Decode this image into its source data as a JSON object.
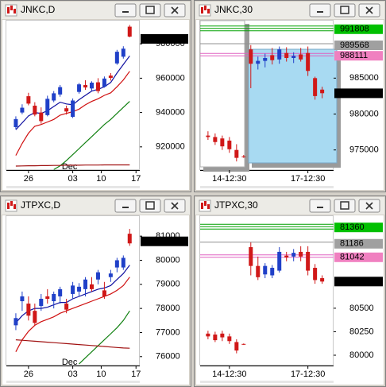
{
  "chart_data": [
    {
      "type": "candlestick",
      "title": "JNKC,D",
      "up_color": "#2040c8",
      "down_color": "#d01818",
      "xlim": [
        -1.5,
        19.6
      ],
      "ylim": [
        906500,
        993500
      ],
      "yticks": [
        920000,
        940000,
        960000,
        980000
      ],
      "xticks": [
        {
          "value": 2,
          "label": "26"
        },
        {
          "value": 9,
          "label": "03"
        },
        {
          "value": 13.5,
          "label": "10"
        },
        {
          "value": 19,
          "label": "17"
        }
      ],
      "month_ticks": [
        {
          "value": 8.5,
          "label": "Dec"
        }
      ],
      "candles": [
        [
          931500,
          937800,
          930200,
          936200
        ],
        [
          940000,
          944800,
          939000,
          942800
        ],
        [
          949500,
          951500,
          944200,
          945200
        ],
        [
          944000,
          946000,
          937800,
          938800
        ],
        [
          940000,
          943000,
          933500,
          935000
        ],
        [
          938500,
          949800,
          937800,
          948000
        ],
        [
          947000,
          952500,
          946000,
          951200
        ],
        [
          950500,
          956000,
          949200,
          954800
        ],
        [
          942500,
          944000,
          938800,
          940600
        ],
        [
          937500,
          948200,
          936800,
          947000
        ],
        [
          952000,
          957200,
          951000,
          956400
        ],
        [
          956000,
          958800,
          953200,
          954600
        ],
        [
          954000,
          958200,
          952800,
          957400
        ],
        [
          957600,
          960000,
          951200,
          952500
        ],
        [
          955000,
          961000,
          954500,
          959800
        ],
        [
          961500,
          963000,
          958600,
          960200
        ],
        [
          968600,
          976500,
          967800,
          975400
        ],
        [
          972500,
          978600,
          971400,
          977200
        ],
        [
          990000,
          991000,
          983800,
          984200
        ]
      ],
      "lines": [
        {
          "color": "#1010a0",
          "values": [
            930000,
            934000,
            938000,
            940000,
            939500,
            941000,
            943500,
            946000,
            945000,
            944500,
            947500,
            950000,
            952500,
            953500,
            955000,
            957500,
            963000,
            968000,
            973000
          ]
        },
        {
          "color": "#d01010",
          "values": [
            915000,
            922000,
            928000,
            932000,
            933000,
            934500,
            936000,
            938500,
            939500,
            940500,
            942000,
            944500,
            946500,
            948000,
            950000,
            951500,
            955000,
            959000,
            964000
          ]
        },
        {
          "color": "#108010",
          "values": [
            null,
            null,
            null,
            null,
            null,
            null,
            906800,
            909000,
            912000,
            915500,
            919000,
            922500,
            926000,
            929500,
            933000,
            936000,
            939500,
            943000,
            946500
          ]
        },
        {
          "color": "#a01010",
          "values": [
            908800,
            908900,
            909000,
            909000,
            909100,
            909100,
            909200,
            909200,
            909300,
            909300,
            909300,
            909400,
            909400,
            909400,
            909500,
            909500,
            909500,
            909500,
            909500
          ]
        }
      ],
      "levels": [
        {
          "value": 982888,
          "label_bg": "#000000",
          "label_color": "#ffffff"
        }
      ]
    },
    {
      "type": "candlestick",
      "title": "JNKC,30",
      "up_color": "#2040c8",
      "down_color": "#d01818",
      "xlim": [
        -1.1,
        17.6
      ],
      "ylim": [
        972200,
        993000
      ],
      "yticks": [
        975000,
        980000,
        985000
      ],
      "xticks": [
        {
          "value": 3,
          "label": "14-12:30"
        },
        {
          "value": 14,
          "label": "17-12:30"
        }
      ],
      "candles": [
        [
          977000,
          977600,
          976400,
          976800
        ],
        [
          976800,
          977300,
          975700,
          976100
        ],
        [
          976600,
          977000,
          975000,
          975500
        ],
        [
          976300,
          976800,
          974600,
          975100
        ],
        [
          975000,
          975800,
          973400,
          973900
        ],
        [
          974100,
          974300,
          973900,
          974000
        ],
        [
          989000,
          989600,
          983600,
          987000
        ],
        [
          987000,
          988000,
          986200,
          987400
        ],
        [
          987400,
          988400,
          986500,
          987800
        ],
        [
          988200,
          989200,
          986900,
          987500
        ],
        [
          987600,
          989400,
          987000,
          989000
        ],
        [
          988500,
          989300,
          987300,
          987800
        ],
        [
          987800,
          988600,
          987100,
          988100
        ],
        [
          988300,
          989200,
          987300,
          987600
        ],
        [
          988500,
          989400,
          985300,
          986000
        ],
        [
          985000,
          985200,
          982000,
          982500
        ],
        [
          983400,
          983800,
          982200,
          982900
        ]
      ],
      "levels": [
        {
          "value": 991808,
          "color": "#00a000",
          "lines": 3,
          "label_bg": "#00c000",
          "label_color": "#000000"
        },
        {
          "value": 989568,
          "color": "#909090",
          "lines": 1,
          "label_bg": "#a0a0a0",
          "label_color": "#000000"
        },
        {
          "value": 988111,
          "color": "#e060c0",
          "lines": 2,
          "label_bg": "#f080c0",
          "label_color": "#000000"
        },
        {
          "value": 982888,
          "label_bg": "#000000",
          "label_color": "#ffffff"
        }
      ]
    },
    {
      "type": "candlestick",
      "title": "JTPXC,D",
      "up_color": "#2040c8",
      "down_color": "#d01818",
      "xlim": [
        -1.5,
        19.6
      ],
      "ylim": [
        75630,
        81830
      ],
      "yticks": [
        76000,
        77000,
        78000,
        79000,
        80000,
        81000
      ],
      "xticks": [
        {
          "value": 2,
          "label": "26"
        },
        {
          "value": 9,
          "label": "03"
        },
        {
          "value": 13.5,
          "label": "10"
        },
        {
          "value": 19,
          "label": "17"
        }
      ],
      "month_ticks": [
        {
          "value": 8.5,
          "label": "Dec"
        }
      ],
      "candles": [
        [
          77300,
          77800,
          77100,
          77600
        ],
        [
          78300,
          78700,
          77900,
          78500
        ],
        [
          78200,
          78500,
          77500,
          77700
        ],
        [
          77900,
          78200,
          77300,
          77400
        ],
        [
          78100,
          78600,
          77900,
          78400
        ],
        [
          78500,
          78800,
          78200,
          78400
        ],
        [
          78300,
          78700,
          78000,
          78600
        ],
        [
          78500,
          78900,
          78200,
          78800
        ],
        [
          78200,
          78400,
          77800,
          77950
        ],
        [
          78600,
          79100,
          78400,
          78950
        ],
        [
          78700,
          79050,
          78500,
          78900
        ],
        [
          78800,
          79300,
          78500,
          79200
        ],
        [
          79000,
          79300,
          78700,
          78800
        ],
        [
          79200,
          79600,
          79000,
          79500
        ],
        [
          78750,
          79100,
          78400,
          78500
        ],
        [
          79300,
          79600,
          79100,
          79450
        ],
        [
          79700,
          80100,
          79500,
          80000
        ],
        [
          79700,
          80200,
          79600,
          80100
        ],
        [
          81100,
          81300,
          80600,
          80700
        ]
      ],
      "lines": [
        {
          "color": "#1010a0",
          "values": [
            77400,
            77700,
            77900,
            78000,
            78000,
            78050,
            78150,
            78250,
            78250,
            78400,
            78500,
            78600,
            78700,
            78800,
            78850,
            78950,
            79200,
            79450,
            79800
          ]
        },
        {
          "color": "#d01010",
          "values": [
            76200,
            76700,
            77050,
            77300,
            77450,
            77550,
            77650,
            77800,
            77900,
            78000,
            78100,
            78200,
            78300,
            78400,
            78500,
            78600,
            78750,
            78950,
            79300
          ]
        },
        {
          "color": "#108010",
          "values": [
            null,
            null,
            null,
            null,
            null,
            null,
            null,
            null,
            null,
            null,
            75700,
            75950,
            76200,
            76450,
            76700,
            76950,
            77200,
            77500,
            77900
          ]
        },
        {
          "color": "#a01010",
          "values": [
            76700,
            76680,
            76660,
            76640,
            76620,
            76600,
            76580,
            76560,
            76540,
            76520,
            76500,
            76480,
            76460,
            76440,
            76420,
            76400,
            76380,
            76360,
            76350
          ]
        }
      ],
      "levels": [
        {
          "value": 80784,
          "label_bg": "#000000",
          "label_color": "#ffffff"
        }
      ]
    },
    {
      "type": "candlestick",
      "title": "JTPXC,30",
      "up_color": "#2040c8",
      "down_color": "#d01818",
      "xlim": [
        -1.1,
        17.6
      ],
      "ylim": [
        79890,
        81480
      ],
      "yticks": [
        80000,
        80250,
        80500
      ],
      "xticks": [
        {
          "value": 3,
          "label": "14-12:30"
        },
        {
          "value": 14,
          "label": "17-12:30"
        }
      ],
      "candles": [
        [
          80230,
          80260,
          80170,
          80200
        ],
        [
          80220,
          80250,
          80140,
          80160
        ],
        [
          80230,
          80260,
          80150,
          80190
        ],
        [
          80200,
          80230,
          80120,
          80150
        ],
        [
          80140,
          80170,
          80020,
          80050
        ],
        [
          80120,
          80125,
          80110,
          80115
        ],
        [
          81150,
          81200,
          80850,
          80950
        ],
        [
          80950,
          81050,
          80800,
          80830
        ],
        [
          80860,
          80980,
          80820,
          80950
        ],
        [
          80850,
          80960,
          80820,
          80930
        ],
        [
          80900,
          81150,
          80880,
          81100
        ],
        [
          81060,
          81100,
          81000,
          81040
        ],
        [
          81050,
          81130,
          81000,
          81090
        ],
        [
          81100,
          81160,
          81000,
          81050
        ],
        [
          81100,
          81160,
          80850,
          80900
        ],
        [
          80930,
          80970,
          80760,
          80800
        ],
        [
          80820,
          80850,
          80760,
          80784
        ]
      ],
      "levels": [
        {
          "value": 81360,
          "color": "#00a000",
          "lines": 3,
          "label_bg": "#00c000",
          "label_color": "#000000"
        },
        {
          "value": 81186,
          "color": "#909090",
          "lines": 1,
          "label_bg": "#a0a0a0",
          "label_color": "#000000"
        },
        {
          "value": 81042,
          "color": "#e060c0",
          "lines": 2,
          "label_bg": "#f080c0",
          "label_color": "#000000"
        },
        {
          "value": 80784,
          "label_bg": "#000000",
          "label_color": "#ffffff"
        }
      ]
    }
  ]
}
